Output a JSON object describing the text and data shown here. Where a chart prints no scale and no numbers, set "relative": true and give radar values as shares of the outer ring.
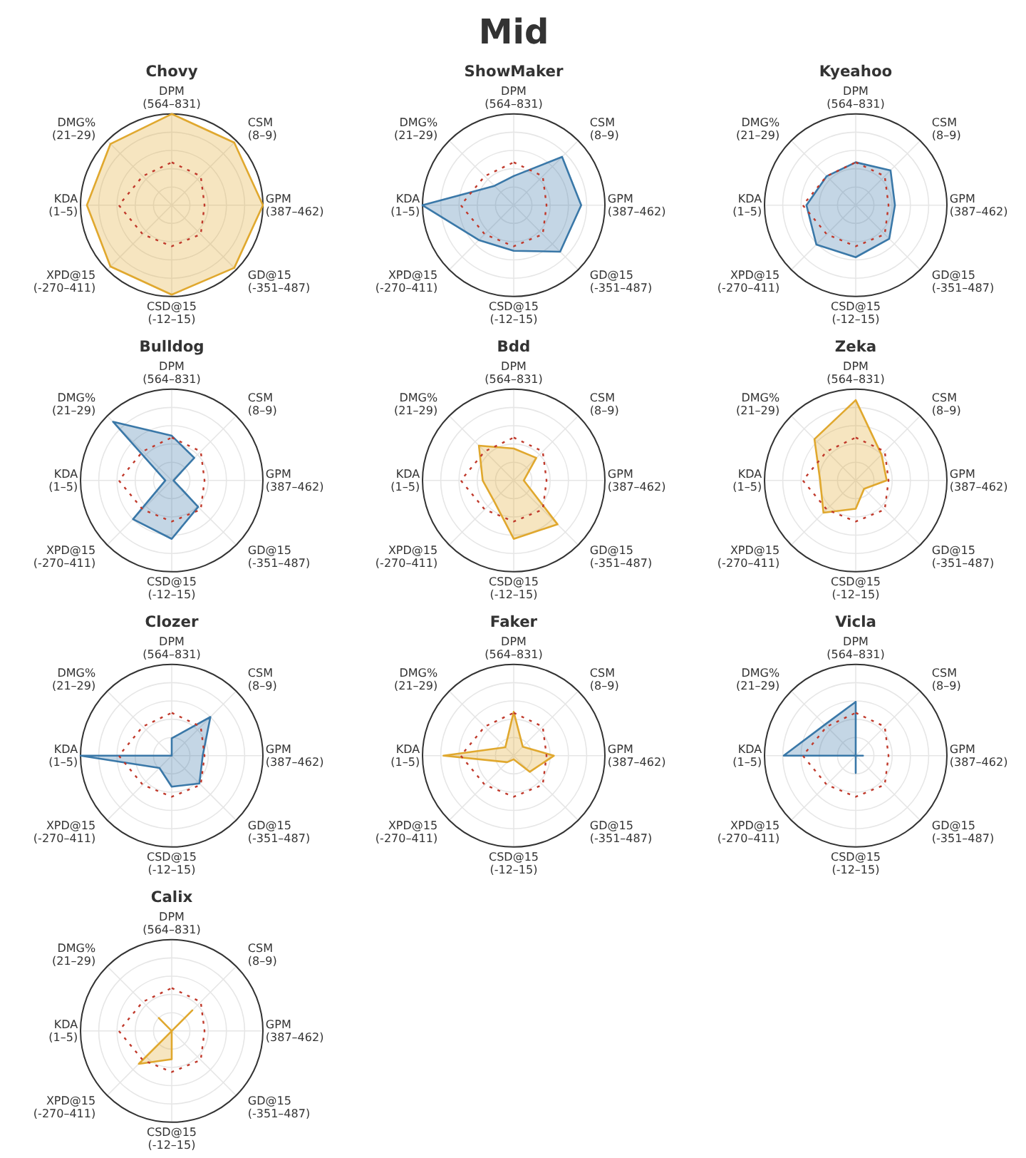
{
  "chart_data": [
    {
      "type": "other",
      "title": "Mid"
    },
    {
      "type": "radar",
      "title": "Chovy",
      "relative": true,
      "grid": true,
      "categories": [
        "DPM (564–831)",
        "CSM (8–9)",
        "GPM (387–462)",
        "GD@15 (-351–487)",
        "CSD@15 (-12–15)",
        "XPD@15 (-270–411)",
        "KDA (1–5)",
        "DMG% (21–29)"
      ],
      "series": [
        {
          "color": "#e0a82e",
          "values": [
            1.0,
            0.97,
            1.0,
            0.97,
            0.98,
            0.95,
            0.93,
            0.95
          ]
        },
        {
          "color": "#c0392b",
          "line_style": "dotted",
          "values": [
            0.47,
            0.45,
            0.36,
            0.45,
            0.45,
            0.45,
            0.58,
            0.45
          ]
        }
      ]
    },
    {
      "type": "radar",
      "title": "ShowMaker",
      "relative": true,
      "grid": true,
      "categories": [
        "DPM (564–831)",
        "CSM (8–9)",
        "GPM (387–462)",
        "GD@15 (-351–487)",
        "CSD@15 (-12–15)",
        "XPD@15 (-270–411)",
        "KDA (1–5)",
        "DMG% (21–29)"
      ],
      "series": [
        {
          "color": "#3a78a8",
          "values": [
            0.32,
            0.75,
            0.74,
            0.72,
            0.5,
            0.54,
            1.0,
            0.3
          ]
        },
        {
          "color": "#c0392b",
          "line_style": "dotted",
          "values": [
            0.47,
            0.45,
            0.36,
            0.45,
            0.45,
            0.45,
            0.58,
            0.45
          ]
        }
      ]
    },
    {
      "type": "radar",
      "title": "Kyeahoo",
      "relative": true,
      "grid": true,
      "categories": [
        "DPM (564–831)",
        "CSM (8–9)",
        "GPM (387–462)",
        "GD@15 (-351–487)",
        "CSD@15 (-12–15)",
        "XPD@15 (-270–411)",
        "KDA (1–5)",
        "DMG% (21–29)"
      ],
      "series": [
        {
          "color": "#3a78a8",
          "values": [
            0.47,
            0.54,
            0.43,
            0.52,
            0.57,
            0.61,
            0.54,
            0.45
          ]
        },
        {
          "color": "#c0392b",
          "line_style": "dotted",
          "values": [
            0.47,
            0.45,
            0.36,
            0.45,
            0.45,
            0.45,
            0.58,
            0.45
          ]
        }
      ]
    },
    {
      "type": "radar",
      "title": "Bulldog",
      "relative": true,
      "grid": true,
      "categories": [
        "DPM (564–831)",
        "CSM (8–9)",
        "GPM (387–462)",
        "GD@15 (-351–487)",
        "CSD@15 (-12–15)",
        "XPD@15 (-270–411)",
        "KDA (1–5)",
        "DMG% (21–29)"
      ],
      "series": [
        {
          "color": "#3a78a8",
          "values": [
            0.49,
            0.35,
            0.02,
            0.41,
            0.64,
            0.6,
            0.07,
            0.91
          ]
        },
        {
          "color": "#c0392b",
          "line_style": "dotted",
          "values": [
            0.47,
            0.45,
            0.36,
            0.45,
            0.45,
            0.45,
            0.58,
            0.45
          ]
        }
      ]
    },
    {
      "type": "radar",
      "title": "Bdd",
      "relative": true,
      "grid": true,
      "categories": [
        "DPM (564–831)",
        "CSM (8–9)",
        "GPM (387–462)",
        "GD@15 (-351–487)",
        "CSD@15 (-12–15)",
        "XPD@15 (-270–411)",
        "KDA (1–5)",
        "DMG% (21–29)"
      ],
      "series": [
        {
          "color": "#e0a82e",
          "values": [
            0.35,
            0.35,
            0.11,
            0.68,
            0.64,
            0.31,
            0.34,
            0.54
          ]
        },
        {
          "color": "#c0392b",
          "line_style": "dotted",
          "values": [
            0.47,
            0.45,
            0.36,
            0.45,
            0.45,
            0.45,
            0.58,
            0.45
          ]
        }
      ]
    },
    {
      "type": "radar",
      "title": "Zeka",
      "relative": true,
      "grid": true,
      "categories": [
        "DPM (564–831)",
        "CSM (8–9)",
        "GPM (387–462)",
        "GD@15 (-351–487)",
        "CSD@15 (-12–15)",
        "XPD@15 (-270–411)",
        "KDA (1–5)",
        "DMG% (21–29)"
      ],
      "series": [
        {
          "color": "#e0a82e",
          "values": [
            0.88,
            0.4,
            0.34,
            0.13,
            0.31,
            0.5,
            0.39,
            0.64
          ]
        },
        {
          "color": "#c0392b",
          "line_style": "dotted",
          "values": [
            0.47,
            0.45,
            0.36,
            0.45,
            0.45,
            0.45,
            0.58,
            0.45
          ]
        }
      ]
    },
    {
      "type": "radar",
      "title": "Clozer",
      "relative": true,
      "grid": true,
      "categories": [
        "DPM (564–831)",
        "CSM (8–9)",
        "GPM (387–462)",
        "GD@15 (-351–487)",
        "CSD@15 (-12–15)",
        "XPD@15 (-270–411)",
        "KDA (1–5)",
        "DMG% (21–29)"
      ],
      "series": [
        {
          "color": "#3a78a8",
          "values": [
            0.19,
            0.6,
            0.34,
            0.43,
            0.34,
            0.19,
            1.0,
            0.0
          ]
        },
        {
          "color": "#c0392b",
          "line_style": "dotted",
          "values": [
            0.47,
            0.45,
            0.36,
            0.45,
            0.45,
            0.45,
            0.58,
            0.45
          ]
        }
      ]
    },
    {
      "type": "radar",
      "title": "Faker",
      "relative": true,
      "grid": true,
      "categories": [
        "DPM (564–831)",
        "CSM (8–9)",
        "GPM (387–462)",
        "GD@15 (-351–487)",
        "CSD@15 (-12–15)",
        "XPD@15 (-270–411)",
        "KDA (1–5)",
        "DMG% (21–29)"
      ],
      "series": [
        {
          "color": "#e0a82e",
          "values": [
            0.48,
            0.14,
            0.44,
            0.25,
            0.04,
            0.1,
            0.77,
            0.13
          ]
        },
        {
          "color": "#c0392b",
          "line_style": "dotted",
          "values": [
            0.47,
            0.45,
            0.36,
            0.45,
            0.45,
            0.45,
            0.58,
            0.45
          ]
        }
      ]
    },
    {
      "type": "radar",
      "title": "Vicla",
      "relative": true,
      "grid": true,
      "categories": [
        "DPM (564–831)",
        "CSM (8–9)",
        "GPM (387–462)",
        "GD@15 (-351–487)",
        "CSD@15 (-12–15)",
        "XPD@15 (-270–411)",
        "KDA (1–5)",
        "DMG% (21–29)"
      ],
      "series": [
        {
          "color": "#3a78a8",
          "values": [
            0.59,
            0.0,
            0.08,
            0.0,
            0.19,
            0.0,
            0.79,
            0.48
          ]
        },
        {
          "color": "#c0392b",
          "line_style": "dotted",
          "values": [
            0.47,
            0.45,
            0.36,
            0.45,
            0.45,
            0.45,
            0.58,
            0.45
          ]
        }
      ]
    },
    {
      "type": "radar",
      "title": "Calix",
      "relative": true,
      "grid": true,
      "categories": [
        "DPM (564–831)",
        "CSM (8–9)",
        "GPM (387–462)",
        "GD@15 (-351–487)",
        "CSD@15 (-12–15)",
        "XPD@15 (-270–411)",
        "KDA (1–5)",
        "DMG% (21–29)"
      ],
      "series": [
        {
          "color": "#e0a82e",
          "values": [
            0.0,
            0.32,
            0.0,
            0.0,
            0.31,
            0.51,
            0.0,
            0.2
          ]
        },
        {
          "color": "#c0392b",
          "line_style": "dotted",
          "values": [
            0.47,
            0.45,
            0.36,
            0.45,
            0.45,
            0.45,
            0.58,
            0.45
          ]
        }
      ]
    }
  ]
}
